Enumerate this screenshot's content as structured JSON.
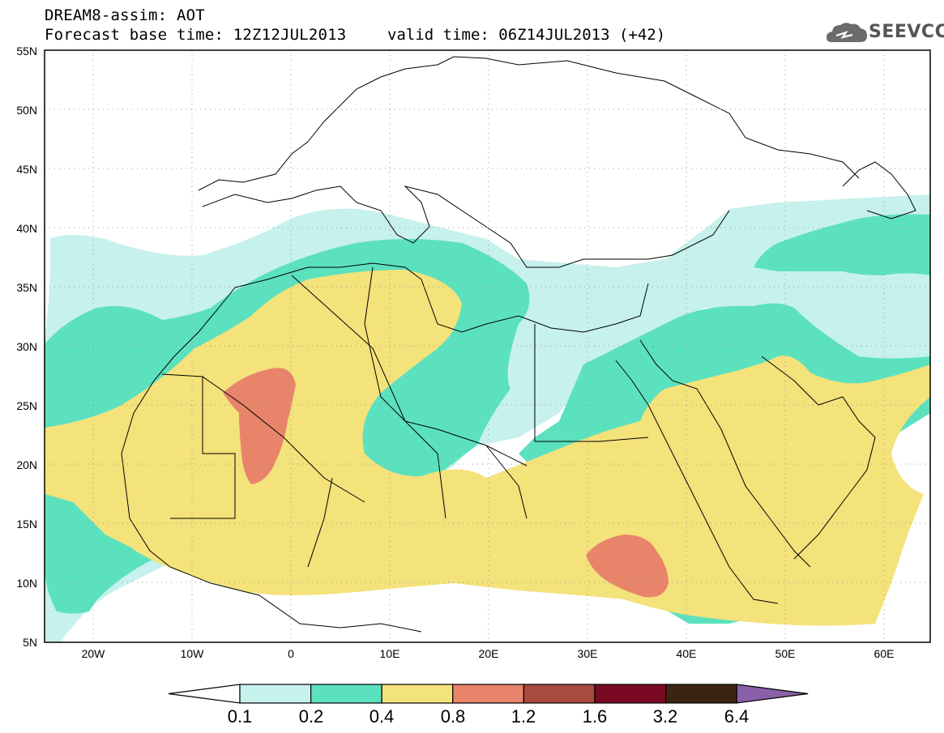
{
  "header": {
    "title_line1": "DREAM8-assim: AOT",
    "title_line2": "Forecast base time: 12Z12JUL2013",
    "valid_time": "valid time: 06Z14JUL2013 (+42)",
    "logo_text": "SEEVCCC",
    "logo_icon": "cloud-icon"
  },
  "map": {
    "lon_range": [
      -25,
      65
    ],
    "lat_range": [
      5,
      55
    ],
    "lat_labels": [
      "5N",
      "10N",
      "15N",
      "20N",
      "25N",
      "30N",
      "35N",
      "40N",
      "45N",
      "50N",
      "55N"
    ],
    "lon_labels": [
      "20W",
      "10W",
      "0",
      "10E",
      "20E",
      "30E",
      "40E",
      "50E",
      "60E"
    ],
    "grid": "dotted"
  },
  "colorbar": {
    "labels": [
      "0.1",
      "0.2",
      "0.4",
      "0.8",
      "1.2",
      "1.6",
      "3.2",
      "6.4"
    ],
    "colors": [
      "#ffffff",
      "#c6f1ec",
      "#5ce1bf",
      "#f4e27a",
      "#e8846a",
      "#a84a3e",
      "#7a0a23",
      "#3b2512",
      "#8a60a8"
    ]
  }
}
